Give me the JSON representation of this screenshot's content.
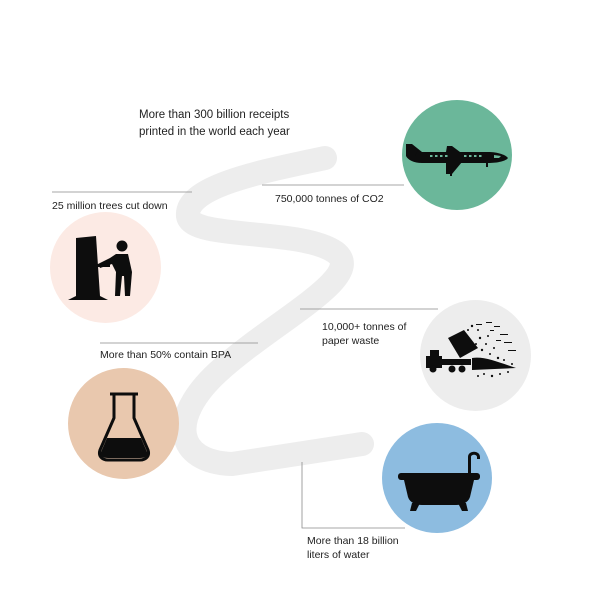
{
  "infographic": {
    "intro": {
      "line1": "More than 300 billion receipts",
      "line2": "printed in the world each year"
    },
    "facts": [
      {
        "id": "co2",
        "text": "750,000 tonnes of CO2",
        "icon": "airplane-icon",
        "color": "#6BB79A"
      },
      {
        "id": "trees",
        "text": "25 million trees cut down",
        "icon": "lumberjack-icon",
        "color": "#FCEAE4"
      },
      {
        "id": "paper",
        "line1": "10,000+ tonnes of",
        "line2": "paper waste",
        "icon": "dump-truck-icon",
        "color": "#EDEDED"
      },
      {
        "id": "bpa",
        "text": "More than 50% contain BPA",
        "icon": "flask-icon",
        "color": "#E9C8AE"
      },
      {
        "id": "water",
        "line1": "More than 18 billion",
        "line2": "liters of water",
        "icon": "bathtub-icon",
        "color": "#8DBCE0"
      }
    ],
    "colors": {
      "squiggle": "#EDEDED",
      "connector": "#8A8A8A",
      "icon": "#0D0D0D"
    }
  }
}
